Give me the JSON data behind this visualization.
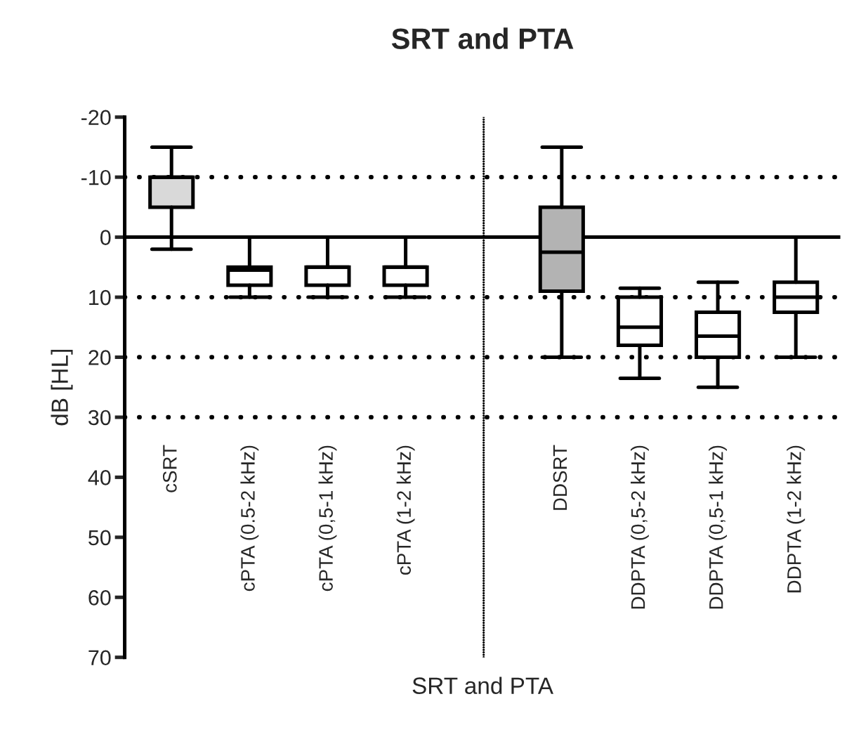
{
  "chart_data": {
    "type": "box",
    "title": "SRT and PTA",
    "xlabel": "SRT and PTA",
    "ylabel": "dB [HL]",
    "categories": [
      "cSRT",
      "cPTA (0.5-2 kHz)",
      "cPTA (0,5-1 kHz)",
      "cPTA (1-2 kHz)",
      null,
      "DDSRT",
      "DDPTA (0,5-2 kHz)",
      "DDPTA (0,5-1 kHz)",
      "DDPTA (1-2 kHz)"
    ],
    "boxes": [
      {
        "low": -15,
        "q1": -10,
        "median": -10,
        "q3": -5,
        "high": 2
      },
      {
        "low": 0,
        "q1": 5,
        "median": 5.5,
        "q3": 8,
        "high": 10
      },
      {
        "low": 0,
        "q1": 5,
        "median": 5,
        "q3": 8,
        "high": 10
      },
      {
        "low": 0,
        "q1": 5,
        "median": 5,
        "q3": 8,
        "high": 10
      },
      null,
      {
        "low": -15,
        "q1": -5,
        "median": 2.5,
        "q3": 9,
        "high": 20
      },
      {
        "low": 8.5,
        "q1": 10,
        "median": 15,
        "q3": 18,
        "high": 23.5
      },
      {
        "low": 7.5,
        "q1": 12.5,
        "median": 16.5,
        "q3": 20,
        "high": 25
      },
      {
        "low": 0,
        "q1": 7.5,
        "median": 10,
        "q3": 12.5,
        "high": 20
      }
    ],
    "colors": [
      "#d9d9d9",
      "#ffffff",
      "#ffffff",
      "#ffffff",
      null,
      "#b3b3b3",
      "#ffffff",
      "#ffffff",
      "#ffffff"
    ],
    "ylim": [
      70,
      -20
    ],
    "yticks": [
      -20,
      -10,
      0,
      10,
      20,
      30,
      40,
      50,
      60,
      70
    ],
    "ref_lines": [
      {
        "axis": "y",
        "value": -10,
        "line_style": "dotted"
      },
      {
        "axis": "y",
        "value": 0,
        "line_style": "solid"
      },
      {
        "axis": "y",
        "value": 10,
        "line_style": "dotted"
      },
      {
        "axis": "y",
        "value": 20,
        "line_style": "dotted"
      },
      {
        "axis": "y",
        "value": 30,
        "line_style": "dotted"
      }
    ],
    "grid": false
  }
}
